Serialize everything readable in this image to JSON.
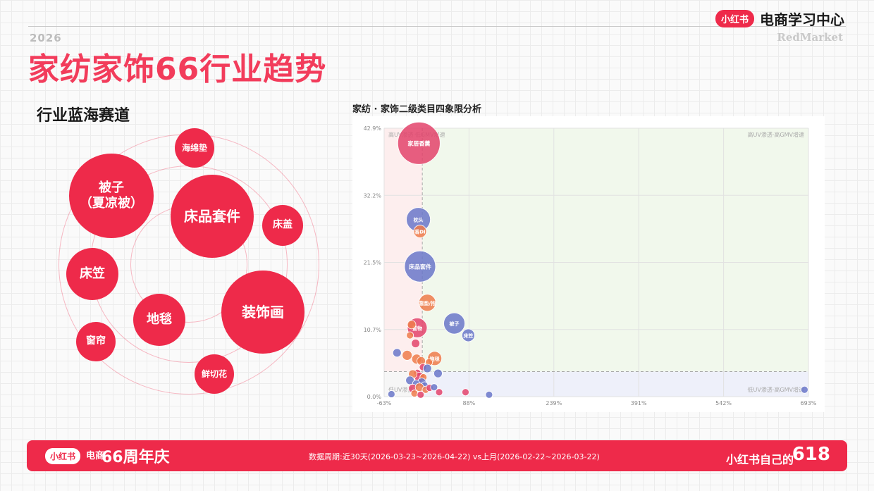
{
  "header": {
    "year": "2026",
    "title": "家纺家饰66行业趋势",
    "brand_logo": "小红书",
    "brand_center": "电商学习中心",
    "brand_sub": "RedMarket"
  },
  "left": {
    "subtitle": "行业蓝海赛道",
    "bubbles": [
      {
        "label": "海绵垫"
      },
      {
        "label": "被子\n（夏凉被）"
      },
      {
        "label": "床品套件"
      },
      {
        "label": "床盖"
      },
      {
        "label": "床笠"
      },
      {
        "label": "地毯"
      },
      {
        "label": "装饰画"
      },
      {
        "label": "窗帘"
      },
      {
        "label": "鲜切花"
      }
    ]
  },
  "chart_title": "家纺 · 家饰二级类目四象限分析",
  "chart_data": {
    "type": "scatter",
    "title": "家纺 · 家饰二级类目四象限分析",
    "xlim": [
      -63,
      693
    ],
    "ylim": [
      0,
      42.9
    ],
    "x_ticks": [
      "-63%",
      "88%",
      "239%",
      "391%",
      "542%",
      "693%"
    ],
    "y_ticks": [
      "0.0%",
      "10.7%",
      "21.5%",
      "32.2%",
      "42.9%"
    ],
    "x_ref": 5,
    "y_ref": 4,
    "quadrant_labels": {
      "top_left": "高UV渗透·低GMV增速",
      "top_right": "高UV渗透·高GMV增速",
      "bottom_left": "低UV渗透",
      "bottom_right": "低UV渗透·高GMV增速"
    },
    "colors": {
      "pink": "#e3436b",
      "blue": "#6a77c9",
      "orange": "#ef7b4b"
    },
    "points": [
      {
        "label": "家居香薰",
        "x": -1,
        "y": 40.5,
        "r": 30,
        "color": "pink"
      },
      {
        "label": "枕头",
        "x": -2,
        "y": 28.3,
        "r": 17,
        "color": "blue"
      },
      {
        "label": "香DI",
        "x": 1,
        "y": 26.4,
        "r": 9,
        "color": "orange"
      },
      {
        "label": "床品套件",
        "x": 1,
        "y": 20.8,
        "r": 22,
        "color": "blue"
      },
      {
        "label": "靠垫/抱",
        "x": 14,
        "y": 15.0,
        "r": 12,
        "color": "orange"
      },
      {
        "label": "被子",
        "x": 62,
        "y": 11.7,
        "r": 15,
        "color": "blue"
      },
      {
        "label": "床笠",
        "x": 87,
        "y": 9.8,
        "r": 9,
        "color": "blue"
      },
      {
        "label": "置物",
        "x": -4,
        "y": 11.0,
        "r": 14,
        "color": "pink"
      },
      {
        "label": "",
        "x": -14,
        "y": 11.5,
        "r": 6,
        "color": "orange"
      },
      {
        "label": "",
        "x": -17,
        "y": 9.8,
        "r": 5,
        "color": "orange"
      },
      {
        "label": "",
        "x": -7,
        "y": 8.5,
        "r": 6,
        "color": "pink"
      },
      {
        "label": "",
        "x": -40,
        "y": 7.0,
        "r": 6,
        "color": "blue"
      },
      {
        "label": "",
        "x": -22,
        "y": 6.6,
        "r": 7,
        "color": "orange"
      },
      {
        "label": "",
        "x": -5,
        "y": 6.0,
        "r": 7,
        "color": "orange"
      },
      {
        "label": "",
        "x": 3,
        "y": 5.7,
        "r": 6,
        "color": "orange"
      },
      {
        "label": "跑毯",
        "x": 27,
        "y": 6.1,
        "r": 10,
        "color": "orange"
      },
      {
        "label": "",
        "x": 17,
        "y": 5.5,
        "r": 5,
        "color": "orange"
      },
      {
        "label": "",
        "x": 6,
        "y": 4.7,
        "r": 5,
        "color": "pink"
      },
      {
        "label": "",
        "x": 14,
        "y": 4.5,
        "r": 6,
        "color": "blue"
      },
      {
        "label": "",
        "x": 33,
        "y": 3.7,
        "r": 6,
        "color": "blue"
      },
      {
        "label": "",
        "x": -4,
        "y": 3.8,
        "r": 5,
        "color": "pink"
      },
      {
        "label": "",
        "x": 0,
        "y": 3.1,
        "r": 7,
        "color": "pink"
      },
      {
        "label": "",
        "x": -12,
        "y": 3.6,
        "r": 6,
        "color": "orange"
      },
      {
        "label": "",
        "x": 7,
        "y": 3.1,
        "r": 5,
        "color": "orange"
      },
      {
        "label": "",
        "x": -17,
        "y": 2.6,
        "r": 6,
        "color": "blue"
      },
      {
        "label": "",
        "x": 4,
        "y": 2.3,
        "r": 6,
        "color": "blue"
      },
      {
        "label": "",
        "x": -6,
        "y": 2.1,
        "r": 5,
        "color": "blue"
      },
      {
        "label": "",
        "x": 9,
        "y": 1.8,
        "r": 5,
        "color": "blue"
      },
      {
        "label": "",
        "x": -12,
        "y": 1.3,
        "r": 6,
        "color": "pink"
      },
      {
        "label": "",
        "x": 0,
        "y": 1.5,
        "r": 6,
        "color": "orange"
      },
      {
        "label": "",
        "x": 11,
        "y": 1.1,
        "r": 5,
        "color": "orange"
      },
      {
        "label": "",
        "x": 18,
        "y": 1.4,
        "r": 5,
        "color": "pink"
      },
      {
        "label": "",
        "x": 26,
        "y": 1.5,
        "r": 5,
        "color": "blue"
      },
      {
        "label": "",
        "x": -9,
        "y": 0.5,
        "r": 5,
        "color": "orange"
      },
      {
        "label": "",
        "x": 2,
        "y": 0.3,
        "r": 5,
        "color": "pink"
      },
      {
        "label": "",
        "x": 35,
        "y": 0.7,
        "r": 5,
        "color": "pink"
      },
      {
        "label": "",
        "x": -50,
        "y": 0.4,
        "r": 5,
        "color": "blue"
      },
      {
        "label": "",
        "x": 82,
        "y": 0.7,
        "r": 5,
        "color": "pink"
      },
      {
        "label": "",
        "x": 124,
        "y": 0.3,
        "r": 5,
        "color": "blue"
      },
      {
        "label": "",
        "x": 686,
        "y": 1.1,
        "r": 5,
        "color": "blue"
      }
    ]
  },
  "footer": {
    "logo": "小红书",
    "tag": "电商",
    "anniversary": "66周年庆",
    "period": "数据周期:近30天(2026-03-23~2026-04-22) vs上月(2026-02-22~2026-03-22)",
    "slogan": "小红书自己的",
    "number": "618"
  }
}
